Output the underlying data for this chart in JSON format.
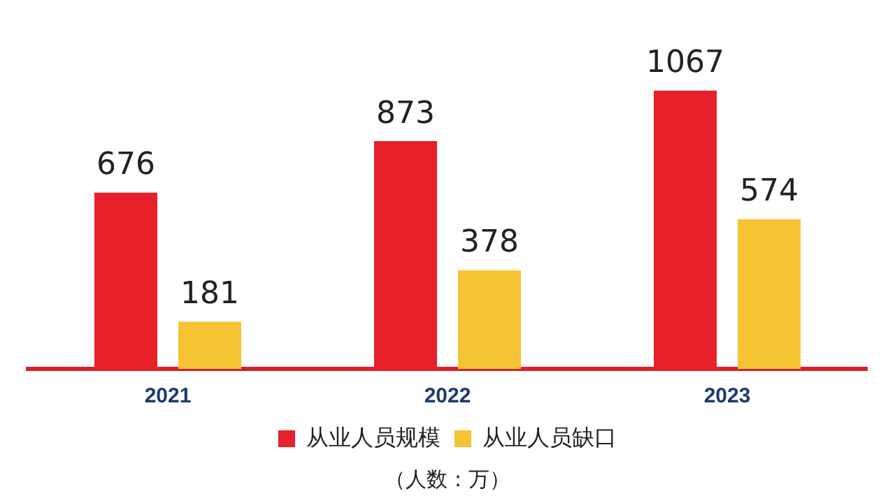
{
  "chart_data": {
    "type": "bar",
    "categories": [
      "2021",
      "2022",
      "2023"
    ],
    "series": [
      {
        "name": "从业人员规模",
        "color": "#e8202a",
        "values": [
          676,
          873,
          1067
        ]
      },
      {
        "name": "从业人员缺口",
        "color": "#f5c334",
        "values": [
          181,
          378,
          574
        ]
      }
    ],
    "data_labels": true,
    "legend": "bottom",
    "grid": false,
    "annotations": [
      "（人数：万）"
    ]
  }
}
